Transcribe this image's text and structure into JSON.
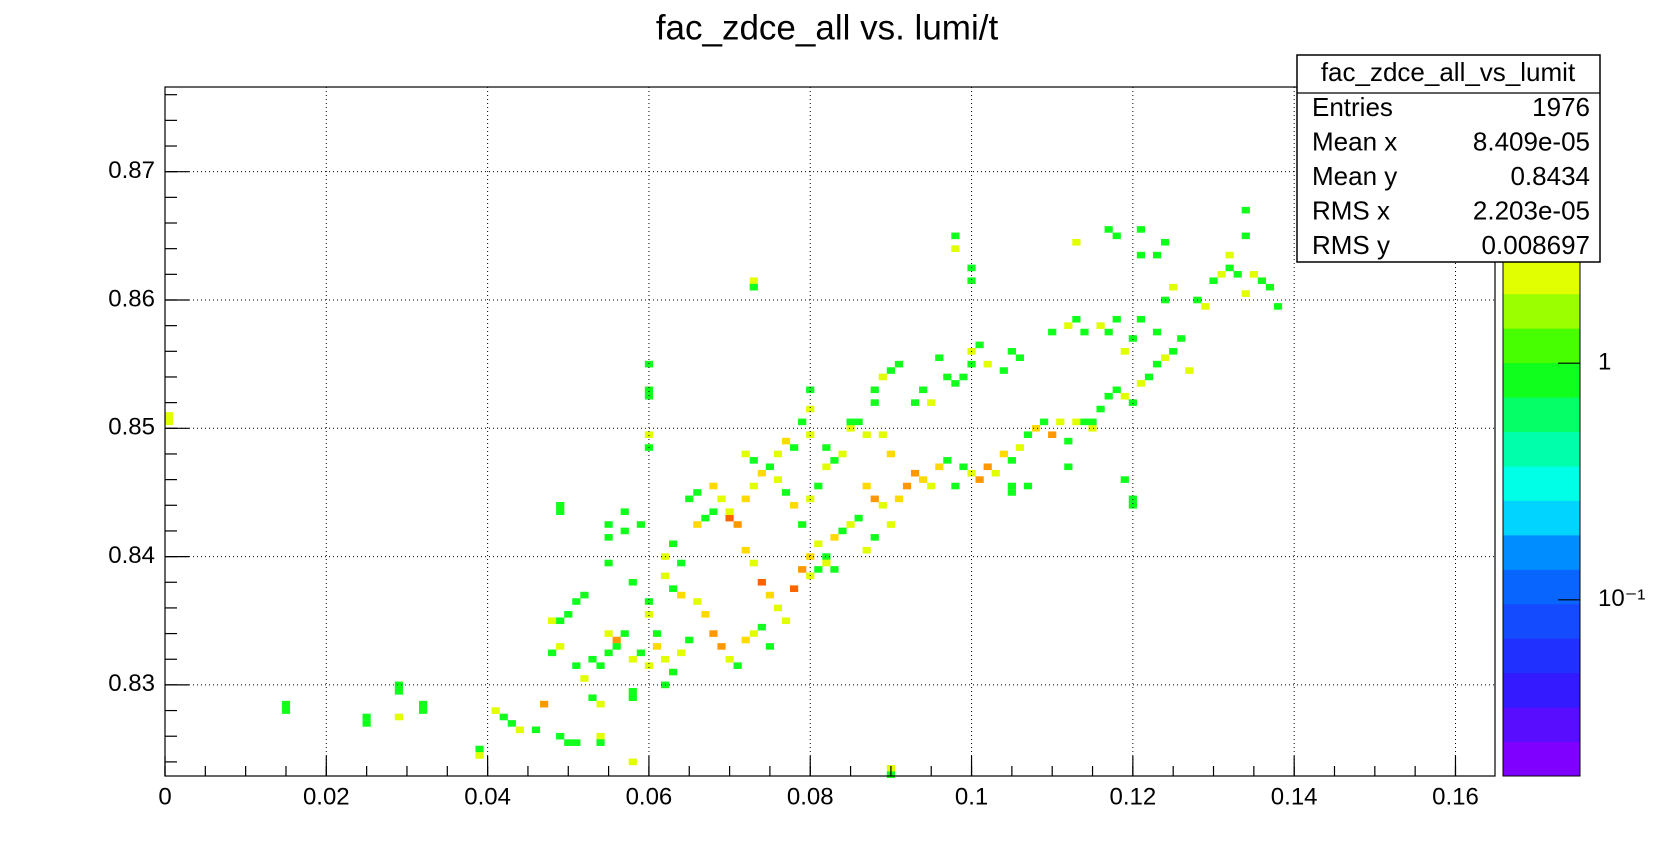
{
  "chart_data": {
    "type": "heatmap",
    "title": "fac_zdce_all vs. lumi/t",
    "xlim": [
      0,
      0.1649
    ],
    "ylim": [
      0.8229,
      0.8766
    ],
    "xticks": [
      0,
      0.02,
      0.04,
      0.06,
      0.08,
      0.1,
      0.12,
      0.14,
      0.16
    ],
    "yticks": [
      0.83,
      0.84,
      0.85,
      0.86,
      0.87
    ],
    "zlim": [
      0.018,
      14.7
    ],
    "zlog": true,
    "zticks": [
      {
        "value": 0.1,
        "label": "10⁻¹"
      },
      1
    ],
    "grid": true,
    "cells": [
      [
        0.0005,
        0.8505,
        2
      ],
      [
        0.0005,
        0.851,
        2
      ],
      [
        0.015,
        0.8285,
        1
      ],
      [
        0.015,
        0.828,
        1
      ],
      [
        0.025,
        0.8275,
        1
      ],
      [
        0.025,
        0.827,
        1
      ],
      [
        0.029,
        0.83,
        1
      ],
      [
        0.029,
        0.8295,
        1
      ],
      [
        0.029,
        0.8275,
        2
      ],
      [
        0.032,
        0.8285,
        1
      ],
      [
        0.032,
        0.828,
        1
      ],
      [
        0.041,
        0.828,
        2
      ],
      [
        0.042,
        0.8275,
        1
      ],
      [
        0.043,
        0.827,
        1
      ],
      [
        0.044,
        0.8265,
        2
      ],
      [
        0.046,
        0.8265,
        1
      ],
      [
        0.039,
        0.825,
        1
      ],
      [
        0.039,
        0.8245,
        2
      ],
      [
        0.047,
        0.8285,
        4
      ],
      [
        0.049,
        0.826,
        1
      ],
      [
        0.05,
        0.8255,
        1
      ],
      [
        0.051,
        0.8255,
        1
      ],
      [
        0.054,
        0.826,
        2
      ],
      [
        0.054,
        0.8255,
        1
      ],
      [
        0.058,
        0.824,
        2
      ],
      [
        0.048,
        0.8325,
        1
      ],
      [
        0.049,
        0.833,
        2
      ],
      [
        0.051,
        0.8315,
        1
      ],
      [
        0.052,
        0.8305,
        2
      ],
      [
        0.053,
        0.832,
        1
      ],
      [
        0.054,
        0.8315,
        1
      ],
      [
        0.055,
        0.8325,
        1
      ],
      [
        0.053,
        0.829,
        1
      ],
      [
        0.054,
        0.8285,
        2
      ],
      [
        0.048,
        0.835,
        2
      ],
      [
        0.049,
        0.835,
        1
      ],
      [
        0.05,
        0.8355,
        1
      ],
      [
        0.051,
        0.8365,
        1
      ],
      [
        0.052,
        0.837,
        1
      ],
      [
        0.055,
        0.834,
        2
      ],
      [
        0.056,
        0.8335,
        4
      ],
      [
        0.057,
        0.834,
        1
      ],
      [
        0.056,
        0.833,
        1
      ],
      [
        0.058,
        0.832,
        2
      ],
      [
        0.059,
        0.8325,
        1
      ],
      [
        0.06,
        0.8315,
        2
      ],
      [
        0.058,
        0.8295,
        1
      ],
      [
        0.058,
        0.829,
        1
      ],
      [
        0.062,
        0.83,
        1
      ],
      [
        0.055,
        0.8395,
        1
      ],
      [
        0.058,
        0.838,
        1
      ],
      [
        0.06,
        0.8365,
        1
      ],
      [
        0.06,
        0.8355,
        2
      ],
      [
        0.061,
        0.834,
        1
      ],
      [
        0.061,
        0.833,
        3
      ],
      [
        0.062,
        0.832,
        2
      ],
      [
        0.063,
        0.831,
        1
      ],
      [
        0.064,
        0.8325,
        2
      ],
      [
        0.065,
        0.8335,
        1
      ],
      [
        0.059,
        0.8425,
        1
      ],
      [
        0.055,
        0.8425,
        1
      ],
      [
        0.055,
        0.8415,
        1
      ],
      [
        0.057,
        0.842,
        1
      ],
      [
        0.049,
        0.844,
        1
      ],
      [
        0.049,
        0.8435,
        1
      ],
      [
        0.057,
        0.8435,
        1
      ],
      [
        0.06,
        0.8485,
        1
      ],
      [
        0.06,
        0.8495,
        2
      ],
      [
        0.06,
        0.8525,
        1
      ],
      [
        0.06,
        0.853,
        1
      ],
      [
        0.06,
        0.855,
        1
      ],
      [
        0.062,
        0.84,
        2
      ],
      [
        0.063,
        0.841,
        1
      ],
      [
        0.064,
        0.8395,
        1
      ],
      [
        0.062,
        0.8385,
        2
      ],
      [
        0.063,
        0.8375,
        1
      ],
      [
        0.064,
        0.837,
        3
      ],
      [
        0.066,
        0.8365,
        2
      ],
      [
        0.067,
        0.8355,
        3
      ],
      [
        0.068,
        0.834,
        5
      ],
      [
        0.069,
        0.833,
        4
      ],
      [
        0.07,
        0.832,
        2
      ],
      [
        0.071,
        0.8315,
        1
      ],
      [
        0.072,
        0.8335,
        3
      ],
      [
        0.073,
        0.834,
        2
      ],
      [
        0.074,
        0.8345,
        1
      ],
      [
        0.075,
        0.833,
        1
      ],
      [
        0.066,
        0.8425,
        3
      ],
      [
        0.067,
        0.843,
        1
      ],
      [
        0.068,
        0.8435,
        1
      ],
      [
        0.065,
        0.8445,
        1
      ],
      [
        0.066,
        0.845,
        1
      ],
      [
        0.068,
        0.8455,
        3
      ],
      [
        0.069,
        0.8445,
        2
      ],
      [
        0.07,
        0.843,
        7
      ],
      [
        0.071,
        0.8425,
        5
      ],
      [
        0.072,
        0.8405,
        3
      ],
      [
        0.073,
        0.8395,
        2
      ],
      [
        0.074,
        0.838,
        6
      ],
      [
        0.075,
        0.837,
        3
      ],
      [
        0.076,
        0.836,
        2
      ],
      [
        0.077,
        0.835,
        2
      ],
      [
        0.078,
        0.8375,
        6
      ],
      [
        0.079,
        0.839,
        4
      ],
      [
        0.08,
        0.84,
        3
      ],
      [
        0.081,
        0.841,
        2
      ],
      [
        0.082,
        0.84,
        1
      ],
      [
        0.07,
        0.8435,
        2
      ],
      [
        0.072,
        0.8445,
        3
      ],
      [
        0.073,
        0.8455,
        2
      ],
      [
        0.074,
        0.8465,
        3
      ],
      [
        0.075,
        0.847,
        1
      ],
      [
        0.076,
        0.846,
        2
      ],
      [
        0.077,
        0.845,
        1
      ],
      [
        0.078,
        0.844,
        3
      ],
      [
        0.079,
        0.8425,
        1
      ],
      [
        0.08,
        0.8445,
        2
      ],
      [
        0.081,
        0.8455,
        1
      ],
      [
        0.082,
        0.847,
        2
      ],
      [
        0.083,
        0.8475,
        1
      ],
      [
        0.084,
        0.848,
        2
      ],
      [
        0.072,
        0.848,
        2
      ],
      [
        0.073,
        0.8475,
        1
      ],
      [
        0.076,
        0.848,
        2
      ],
      [
        0.077,
        0.849,
        3
      ],
      [
        0.078,
        0.8485,
        1
      ],
      [
        0.079,
        0.8505,
        1
      ],
      [
        0.08,
        0.8495,
        2
      ],
      [
        0.082,
        0.8485,
        1
      ],
      [
        0.085,
        0.85,
        2
      ],
      [
        0.086,
        0.8505,
        1
      ],
      [
        0.087,
        0.8495,
        2
      ],
      [
        0.088,
        0.852,
        1
      ],
      [
        0.089,
        0.8495,
        2
      ],
      [
        0.09,
        0.848,
        3
      ],
      [
        0.08,
        0.8515,
        2
      ],
      [
        0.08,
        0.853,
        1
      ],
      [
        0.085,
        0.8505,
        1
      ],
      [
        0.088,
        0.853,
        1
      ],
      [
        0.089,
        0.854,
        2
      ],
      [
        0.09,
        0.8545,
        1
      ],
      [
        0.091,
        0.855,
        1
      ],
      [
        0.093,
        0.852,
        1
      ],
      [
        0.094,
        0.853,
        1
      ],
      [
        0.095,
        0.852,
        2
      ],
      [
        0.096,
        0.8555,
        1
      ],
      [
        0.097,
        0.854,
        1
      ],
      [
        0.098,
        0.8535,
        1
      ],
      [
        0.099,
        0.854,
        1
      ],
      [
        0.1,
        0.855,
        1
      ],
      [
        0.1,
        0.856,
        2
      ],
      [
        0.101,
        0.8565,
        1
      ],
      [
        0.102,
        0.855,
        2
      ],
      [
        0.104,
        0.8545,
        1
      ],
      [
        0.105,
        0.856,
        1
      ],
      [
        0.106,
        0.8555,
        1
      ],
      [
        0.087,
        0.8455,
        3
      ],
      [
        0.088,
        0.8445,
        5
      ],
      [
        0.089,
        0.844,
        2
      ],
      [
        0.09,
        0.8425,
        2
      ],
      [
        0.091,
        0.8445,
        3
      ],
      [
        0.092,
        0.8455,
        5
      ],
      [
        0.093,
        0.8465,
        4
      ],
      [
        0.094,
        0.846,
        3
      ],
      [
        0.095,
        0.8455,
        2
      ],
      [
        0.096,
        0.847,
        3
      ],
      [
        0.097,
        0.8475,
        1
      ],
      [
        0.098,
        0.8455,
        1
      ],
      [
        0.099,
        0.847,
        1
      ],
      [
        0.1,
        0.8465,
        2
      ],
      [
        0.101,
        0.846,
        5
      ],
      [
        0.102,
        0.847,
        4
      ],
      [
        0.103,
        0.8465,
        2
      ],
      [
        0.104,
        0.848,
        3
      ],
      [
        0.105,
        0.8475,
        1
      ],
      [
        0.083,
        0.8415,
        3
      ],
      [
        0.084,
        0.842,
        1
      ],
      [
        0.085,
        0.8425,
        2
      ],
      [
        0.086,
        0.843,
        1
      ],
      [
        0.087,
        0.8405,
        2
      ],
      [
        0.088,
        0.8415,
        1
      ],
      [
        0.08,
        0.8385,
        2
      ],
      [
        0.081,
        0.839,
        1
      ],
      [
        0.082,
        0.8395,
        2
      ],
      [
        0.083,
        0.839,
        1
      ],
      [
        0.106,
        0.8485,
        2
      ],
      [
        0.107,
        0.8495,
        1
      ],
      [
        0.108,
        0.85,
        3
      ],
      [
        0.109,
        0.8505,
        1
      ],
      [
        0.11,
        0.8495,
        5
      ],
      [
        0.111,
        0.8505,
        2
      ],
      [
        0.112,
        0.849,
        1
      ],
      [
        0.113,
        0.8505,
        2
      ],
      [
        0.114,
        0.8505,
        1
      ],
      [
        0.115,
        0.85,
        2
      ],
      [
        0.116,
        0.8515,
        1
      ],
      [
        0.117,
        0.8525,
        1
      ],
      [
        0.118,
        0.853,
        1
      ],
      [
        0.119,
        0.8525,
        2
      ],
      [
        0.12,
        0.852,
        1
      ],
      [
        0.121,
        0.8535,
        2
      ],
      [
        0.122,
        0.854,
        1
      ],
      [
        0.123,
        0.855,
        1
      ],
      [
        0.124,
        0.8555,
        2
      ],
      [
        0.125,
        0.856,
        1
      ],
      [
        0.126,
        0.857,
        1
      ],
      [
        0.127,
        0.8545,
        2
      ],
      [
        0.11,
        0.8575,
        1
      ],
      [
        0.112,
        0.858,
        2
      ],
      [
        0.113,
        0.8585,
        1
      ],
      [
        0.114,
        0.8575,
        1
      ],
      [
        0.116,
        0.858,
        2
      ],
      [
        0.117,
        0.8575,
        1
      ],
      [
        0.118,
        0.8585,
        1
      ],
      [
        0.119,
        0.856,
        2
      ],
      [
        0.12,
        0.857,
        1
      ],
      [
        0.121,
        0.8585,
        1
      ],
      [
        0.123,
        0.8575,
        1
      ],
      [
        0.124,
        0.86,
        1
      ],
      [
        0.125,
        0.861,
        2
      ],
      [
        0.128,
        0.86,
        1
      ],
      [
        0.129,
        0.8595,
        2
      ],
      [
        0.13,
        0.8615,
        1
      ],
      [
        0.131,
        0.862,
        2
      ],
      [
        0.132,
        0.8625,
        1
      ],
      [
        0.133,
        0.862,
        1
      ],
      [
        0.134,
        0.8605,
        2
      ],
      [
        0.135,
        0.862,
        2
      ],
      [
        0.136,
        0.8615,
        1
      ],
      [
        0.137,
        0.861,
        1
      ],
      [
        0.138,
        0.8595,
        1
      ],
      [
        0.098,
        0.865,
        1
      ],
      [
        0.098,
        0.864,
        2
      ],
      [
        0.1,
        0.8625,
        1
      ],
      [
        0.1,
        0.8615,
        1
      ],
      [
        0.113,
        0.8645,
        2
      ],
      [
        0.117,
        0.8655,
        1
      ],
      [
        0.118,
        0.865,
        1
      ],
      [
        0.121,
        0.8655,
        1
      ],
      [
        0.121,
        0.8635,
        1
      ],
      [
        0.124,
        0.8645,
        1
      ],
      [
        0.123,
        0.8635,
        1
      ],
      [
        0.132,
        0.8635,
        2
      ],
      [
        0.134,
        0.867,
        1
      ],
      [
        0.134,
        0.865,
        1
      ],
      [
        0.073,
        0.8615,
        2
      ],
      [
        0.073,
        0.861,
        1
      ],
      [
        0.112,
        0.847,
        1
      ],
      [
        0.115,
        0.8505,
        1
      ],
      [
        0.119,
        0.846,
        1
      ],
      [
        0.12,
        0.8445,
        1
      ],
      [
        0.12,
        0.844,
        1
      ],
      [
        0.09,
        0.8235,
        2
      ],
      [
        0.09,
        0.823,
        1
      ],
      [
        0.105,
        0.8455,
        1
      ],
      [
        0.107,
        0.8455,
        1
      ],
      [
        0.105,
        0.845,
        1
      ]
    ]
  },
  "stats": {
    "title": "fac_zdce_all_vs_lumit",
    "rows": [
      [
        "Entries",
        "1976"
      ],
      [
        "Mean x",
        "8.409e-05"
      ],
      [
        "Mean y",
        "0.8434"
      ],
      [
        "RMS x",
        "2.203e-05"
      ],
      [
        "RMS y",
        "0.008697"
      ]
    ]
  }
}
